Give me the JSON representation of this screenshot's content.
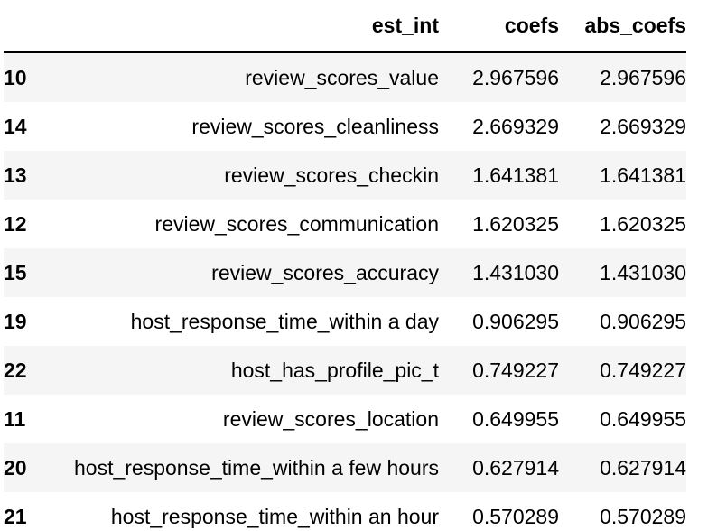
{
  "table": {
    "columns": {
      "index": "",
      "est_int": "est_int",
      "coefs": "coefs",
      "abs_coefs": "abs_coefs"
    },
    "rows": [
      {
        "index": "10",
        "est_int": "review_scores_value",
        "coefs": "2.967596",
        "abs_coefs": "2.967596"
      },
      {
        "index": "14",
        "est_int": "review_scores_cleanliness",
        "coefs": "2.669329",
        "abs_coefs": "2.669329"
      },
      {
        "index": "13",
        "est_int": "review_scores_checkin",
        "coefs": "1.641381",
        "abs_coefs": "1.641381"
      },
      {
        "index": "12",
        "est_int": "review_scores_communication",
        "coefs": "1.620325",
        "abs_coefs": "1.620325"
      },
      {
        "index": "15",
        "est_int": "review_scores_accuracy",
        "coefs": "1.431030",
        "abs_coefs": "1.431030"
      },
      {
        "index": "19",
        "est_int": "host_response_time_within a day",
        "coefs": "0.906295",
        "abs_coefs": "0.906295"
      },
      {
        "index": "22",
        "est_int": "host_has_profile_pic_t",
        "coefs": "0.749227",
        "abs_coefs": "0.749227"
      },
      {
        "index": "11",
        "est_int": "review_scores_location",
        "coefs": "0.649955",
        "abs_coefs": "0.649955"
      },
      {
        "index": "20",
        "est_int": "host_response_time_within a few hours",
        "coefs": "0.627914",
        "abs_coefs": "0.627914"
      },
      {
        "index": "21",
        "est_int": "host_response_time_within an hour",
        "coefs": "0.570289",
        "abs_coefs": "0.570289"
      }
    ]
  }
}
